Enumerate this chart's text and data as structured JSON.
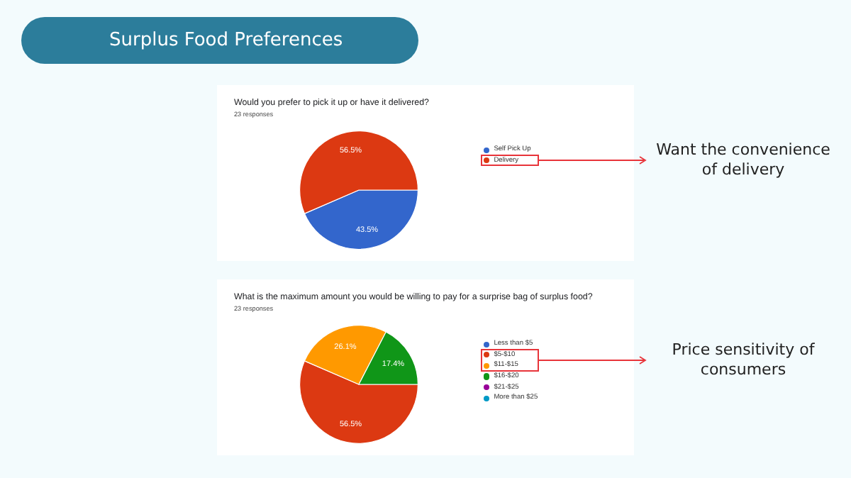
{
  "chart_data": [
    {
      "type": "pie",
      "title": "Would you prefer to pick it up or have it delivered?",
      "subtitle": "23 responses",
      "categories": [
        "Self Pick Up",
        "Delivery"
      ],
      "values": [
        43.5,
        56.5
      ],
      "value_labels": [
        "43.5%",
        "56.5%"
      ],
      "colors": [
        "#3366cc",
        "#dc3912"
      ],
      "legend": "right",
      "annotations": [
        "Surplus Food Preferences",
        "Want the convenience of delivery"
      ]
    },
    {
      "type": "pie",
      "title": "What is the maximum amount you would be willing to pay for a surprise bag of surplus food?",
      "subtitle": "23 responses",
      "categories": [
        "Less than $5",
        "$5-$10",
        "$11-$15",
        "$16-$20",
        "$21-$25",
        "More than $25"
      ],
      "values": [
        0,
        56.5,
        26.1,
        17.4,
        0,
        0
      ],
      "value_labels": [
        null,
        "56.5%",
        "26.1%",
        "17.4%",
        null,
        null
      ],
      "colors": [
        "#3366cc",
        "#dc3912",
        "#ff9900",
        "#109618",
        "#990099",
        "#0099c6"
      ],
      "legend": "right",
      "annotations": [
        "Price sensitivity of consumers"
      ]
    }
  ]
}
